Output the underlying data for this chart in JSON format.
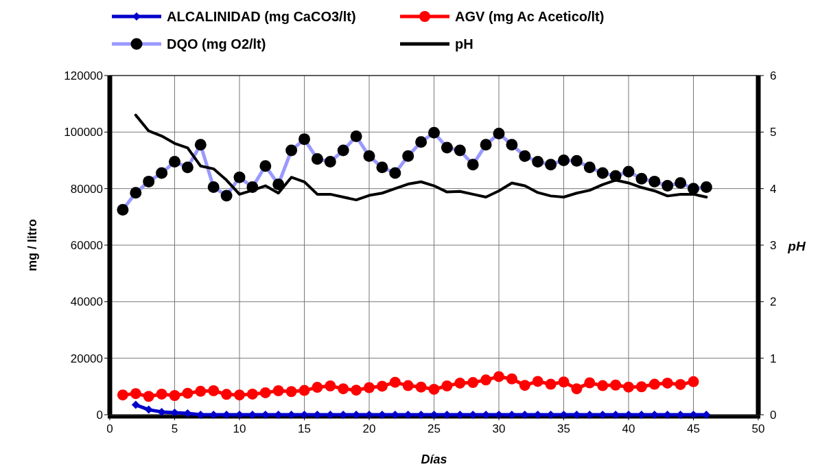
{
  "chart_data": {
    "type": "line",
    "xlabel": "Días",
    "ylabel": "mg / litro",
    "y2label": "pH",
    "xlim": [
      0,
      50
    ],
    "xticks": [
      0,
      5,
      10,
      15,
      20,
      25,
      30,
      35,
      40,
      45,
      50
    ],
    "ylim": [
      0,
      120000
    ],
    "yticks": [
      0,
      20000,
      40000,
      60000,
      80000,
      100000,
      120000
    ],
    "y2lim": [
      0,
      6
    ],
    "y2ticks": [
      0,
      1,
      2,
      3,
      4,
      5,
      6
    ],
    "grid": true,
    "legend": "top",
    "series": [
      {
        "name": "ALCALINIDAD (mg CaCO3/lt)",
        "color": "#0000cc",
        "marker": "diamond",
        "x": [
          2,
          3,
          4,
          5,
          6,
          7,
          8,
          9,
          10,
          11,
          12,
          13,
          14,
          15,
          16,
          17,
          18,
          19,
          20,
          21,
          22,
          23,
          24,
          25,
          26,
          27,
          28,
          29,
          30,
          31,
          32,
          33,
          34,
          35,
          36,
          37,
          38,
          39,
          40,
          41,
          42,
          43,
          44,
          45,
          46
        ],
        "values": [
          3500,
          1800,
          1000,
          700,
          500,
          0,
          0,
          0,
          0,
          0,
          0,
          0,
          0,
          0,
          0,
          0,
          0,
          0,
          0,
          0,
          0,
          0,
          0,
          0,
          0,
          0,
          0,
          0,
          0,
          0,
          0,
          0,
          0,
          0,
          0,
          0,
          0,
          0,
          0,
          0,
          0,
          0,
          0,
          0,
          0
        ]
      },
      {
        "name": "AGV (mg Ac Acetico/lt)",
        "color": "#ff0000",
        "marker": "circle",
        "x": [
          1,
          2,
          3,
          4,
          5,
          6,
          7,
          8,
          9,
          10,
          11,
          12,
          13,
          14,
          15,
          16,
          17,
          18,
          19,
          20,
          21,
          22,
          23,
          24,
          25,
          26,
          27,
          28,
          29,
          30,
          31,
          32,
          33,
          34,
          35,
          36,
          37,
          38,
          39,
          40,
          41,
          42,
          43,
          44,
          45
        ],
        "values": [
          7000,
          7500,
          6500,
          7300,
          6800,
          7600,
          8300,
          8500,
          7200,
          7000,
          7300,
          7800,
          8500,
          8200,
          8600,
          9700,
          10200,
          9200,
          8700,
          9600,
          10100,
          11500,
          10300,
          9800,
          9000,
          10200,
          11200,
          11400,
          12300,
          13500,
          12700,
          10400,
          11800,
          10800,
          11600,
          9200,
          11300,
          10300,
          10500,
          9800,
          9900,
          10800,
          11200,
          10700,
          11700
        ]
      },
      {
        "name": "DQO (mg O2/lt)",
        "color": "#9999ff",
        "marker": "circle",
        "x": [
          1,
          2,
          3,
          4,
          5,
          6,
          7,
          8,
          9,
          10,
          11,
          12,
          13,
          14,
          15,
          16,
          17,
          18,
          19,
          20,
          21,
          22,
          23,
          24,
          25,
          26,
          27,
          28,
          29,
          30,
          31,
          32,
          33,
          34,
          35,
          36,
          37,
          38,
          39,
          40,
          41,
          42,
          43,
          44,
          45,
          46
        ],
        "values": [
          72500,
          78500,
          82500,
          85500,
          89500,
          87500,
          95500,
          80500,
          77500,
          84000,
          80500,
          88000,
          81500,
          93500,
          97500,
          90500,
          89500,
          93500,
          98500,
          91500,
          87500,
          85500,
          91500,
          96500,
          99800,
          94500,
          93500,
          88500,
          95500,
          99500,
          95500,
          91500,
          89500,
          88500,
          90000,
          89800,
          87500,
          85500,
          84500,
          86000,
          83500,
          82500,
          81000,
          82000,
          80000,
          80500
        ]
      },
      {
        "name": "pH",
        "color": "#000000",
        "marker": "none",
        "axis": "y2",
        "x": [
          2,
          3,
          4,
          5,
          6,
          7,
          8,
          9,
          10,
          11,
          12,
          13,
          14,
          15,
          16,
          17,
          18,
          19,
          20,
          21,
          22,
          23,
          24,
          25,
          26,
          27,
          28,
          29,
          30,
          31,
          32,
          33,
          34,
          35,
          36,
          37,
          38,
          39,
          40,
          41,
          42,
          43,
          44,
          45,
          46
        ],
        "values": [
          5.3,
          5.02,
          4.93,
          4.8,
          4.72,
          4.4,
          4.35,
          4.15,
          3.9,
          3.97,
          4.05,
          3.92,
          4.2,
          4.12,
          3.9,
          3.9,
          3.85,
          3.8,
          3.88,
          3.92,
          4.0,
          4.08,
          4.12,
          4.05,
          3.94,
          3.95,
          3.9,
          3.85,
          3.96,
          4.1,
          4.05,
          3.93,
          3.87,
          3.85,
          3.92,
          3.97,
          4.07,
          4.15,
          4.1,
          4.02,
          3.96,
          3.87,
          3.9,
          3.9,
          3.85
        ]
      }
    ]
  }
}
